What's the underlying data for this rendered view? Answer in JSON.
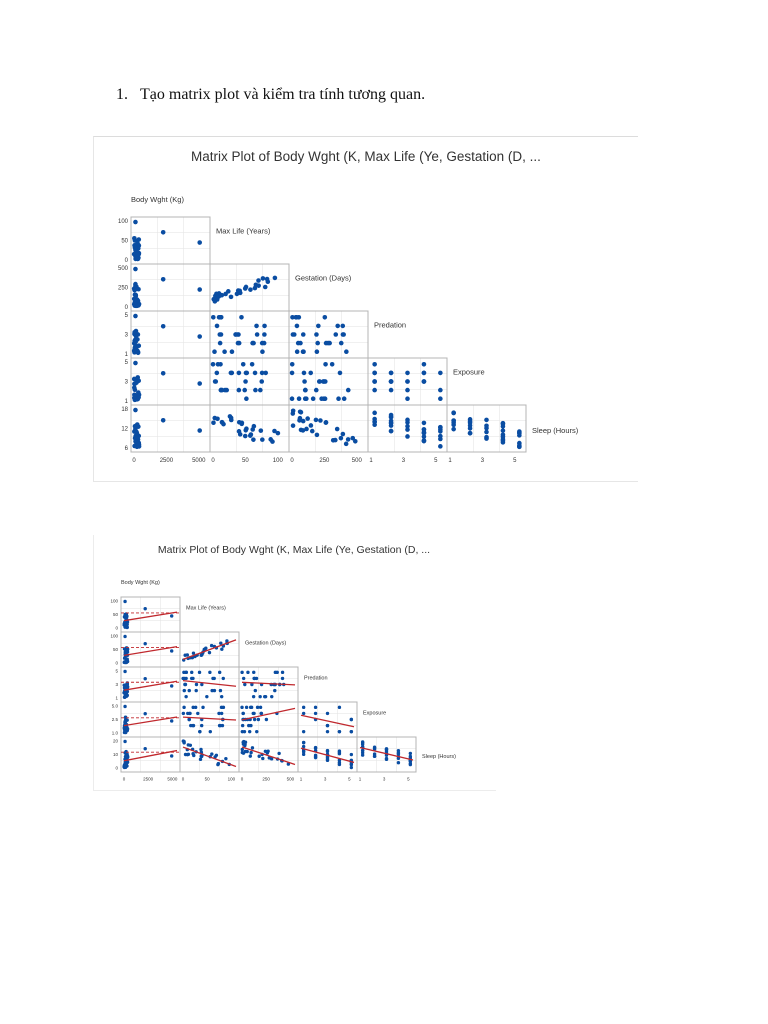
{
  "document": {
    "item_number": "1.",
    "instruction": "Tạo matrix plot và kiểm tra tính tương quan."
  },
  "chart_data": [
    {
      "type": "scatter",
      "title": "Matrix Plot of Body Wght (K, Max Life (Ye, Gestation (D, ...",
      "variables": [
        "Body Wght (Kg)",
        "Max Life (Years)",
        "Gestation (Days)",
        "Predation",
        "Exposure",
        "Sleep (Hours)"
      ],
      "row_tick_labels": [
        [
          "0",
          "50",
          "100"
        ],
        [
          "0",
          "250",
          "500"
        ],
        [
          "1",
          "3",
          "5"
        ],
        [
          "1",
          "3",
          "5"
        ],
        [
          "6",
          "12",
          "18"
        ]
      ],
      "col_tick_labels": [
        [
          "0",
          "2500",
          "5000"
        ],
        [
          "0",
          "50",
          "100"
        ],
        [
          "0",
          "250",
          "500"
        ],
        [
          "1",
          "3",
          "5"
        ],
        [
          "1",
          "3",
          "5"
        ]
      ],
      "fit_lines": false
    },
    {
      "type": "scatter",
      "title": "Matrix Plot of Body Wght (K, Max Life (Ye, Gestation (D, ...",
      "variables": [
        "Body Wght (Kg)",
        "Max Life (Years)",
        "Gestation (Days)",
        "Predation",
        "Exposure",
        "Sleep (Hours)"
      ],
      "row_tick_labels": [
        [
          "0",
          "50",
          "100"
        ],
        [
          "0",
          "50",
          "100"
        ],
        [
          "1",
          "3",
          "5"
        ],
        [
          "1.0",
          "2.5",
          "5.0"
        ],
        [
          "0",
          "10",
          "20"
        ]
      ],
      "col_tick_labels": [
        [
          "0",
          "2500",
          "5000"
        ],
        [
          "0",
          "50",
          "100"
        ],
        [
          "0",
          "250",
          "500"
        ],
        [
          "1",
          "3",
          "5"
        ],
        [
          "1",
          "3",
          "5"
        ]
      ],
      "fit_lines": true
    }
  ]
}
